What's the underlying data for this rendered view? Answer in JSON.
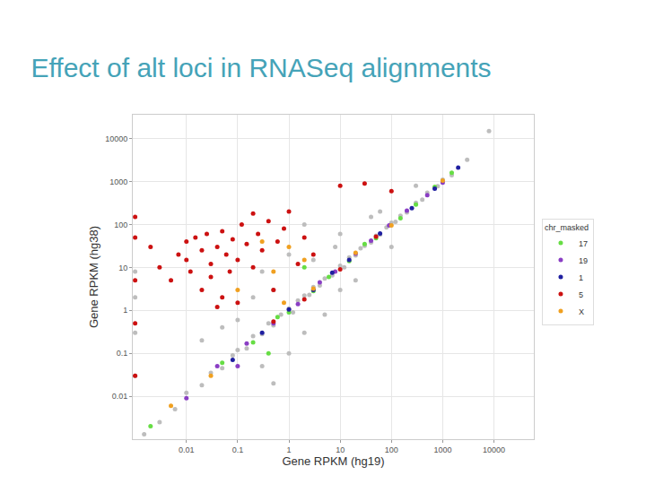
{
  "chart_data": {
    "type": "scatter",
    "title": "Effect of alt loci in RNASeq alignments",
    "x_label": "Gene RPKM (hg19)",
    "y_label": "Gene RPKM (hg38)",
    "legend_title": "chr_masked",
    "log": true,
    "grid": true,
    "legend": "right",
    "marker": "circle",
    "xlim": [
      0.0009,
      60000
    ],
    "ylim": [
      0.001,
      36000
    ],
    "xticks": [
      0.01,
      0.1,
      1,
      10,
      100,
      1000,
      10000
    ],
    "yticks": [
      0.01,
      0.1,
      1,
      10,
      100,
      1000,
      10000
    ],
    "series": [
      {
        "color": "#bdbdbd",
        "x": [
          0.0015,
          0.003,
          0.006,
          0.01,
          0.02,
          0.03,
          0.05,
          0.08,
          0.1,
          0.15,
          0.2,
          0.3,
          0.4,
          0.5,
          0.7,
          1,
          1.2,
          1.5,
          2,
          2.5,
          3,
          4,
          5,
          7,
          10,
          12,
          15,
          20,
          25,
          30,
          40,
          50,
          60,
          80,
          100,
          120,
          150,
          200,
          300,
          400,
          500,
          800,
          1000,
          1500,
          3000,
          8000,
          0.1,
          0.3,
          0.5,
          1,
          2,
          3,
          5,
          8,
          0.05,
          20,
          40,
          10,
          0.2,
          0.02,
          100,
          0.5,
          60,
          0.001,
          0.001,
          0.001,
          0.001,
          2,
          0.3,
          1,
          10,
          300
        ],
        "y": [
          0.0013,
          0.0025,
          0.005,
          0.012,
          0.018,
          0.035,
          0.045,
          0.09,
          0.12,
          0.13,
          0.25,
          0.28,
          0.5,
          0.45,
          0.8,
          1.1,
          0.9,
          1.7,
          2.2,
          2.3,
          3.5,
          3.8,
          5.5,
          6.5,
          11,
          10,
          17,
          19,
          28,
          32,
          38,
          55,
          58,
          85,
          110,
          115,
          160,
          190,
          320,
          380,
          550,
          780,
          1100,
          1400,
          3200,
          15000,
          0.6,
          0.05,
          3,
          0.1,
          0.3,
          15,
          0.8,
          30,
          0.4,
          5,
          150,
          60,
          2,
          0.2,
          30,
          0.02,
          200,
          0.03,
          0.3,
          2,
          8,
          100,
          8,
          20,
          3,
          800
        ]
      },
      {
        "name": "17",
        "color": "#66dd44",
        "x": [
          0.002,
          0.05,
          0.2,
          0.6,
          1,
          3,
          6,
          15,
          30,
          50,
          150,
          300,
          700,
          1500,
          0.4,
          2
        ],
        "y": [
          0.002,
          0.06,
          0.18,
          0.7,
          0.9,
          2.8,
          6,
          14,
          35,
          48,
          140,
          290,
          750,
          1600,
          0.1,
          10
        ]
      },
      {
        "name": "19",
        "color": "#8a3ec4",
        "x": [
          0.01,
          0.04,
          0.15,
          0.5,
          1.5,
          4,
          8,
          20,
          40,
          90,
          200,
          500,
          1000,
          0.1
        ],
        "y": [
          0.009,
          0.05,
          0.17,
          0.5,
          1.4,
          4.5,
          8,
          21,
          42,
          95,
          210,
          480,
          950,
          0.05
        ]
      },
      {
        "name": "1",
        "color": "#1f1fa0",
        "x": [
          0.3,
          1,
          3,
          7,
          15,
          60,
          250,
          700,
          2000,
          0.08
        ],
        "y": [
          0.3,
          1.05,
          3,
          7.5,
          15,
          62,
          240,
          680,
          2100,
          0.07
        ]
      },
      {
        "name": "5",
        "color": "#cc1111",
        "x": [
          0.002,
          0.003,
          0.005,
          0.007,
          0.01,
          0.01,
          0.012,
          0.015,
          0.02,
          0.02,
          0.025,
          0.03,
          0.03,
          0.04,
          0.05,
          0.05,
          0.06,
          0.07,
          0.08,
          0.1,
          0.1,
          0.12,
          0.15,
          0.2,
          0.25,
          0.3,
          0.4,
          0.5,
          0.6,
          0.8,
          1,
          1.5,
          2,
          3,
          10,
          30,
          100,
          0.2,
          0.04,
          0.001,
          0.001,
          0.001,
          0.001,
          0.001,
          0.5,
          2,
          10,
          50
        ],
        "y": [
          30,
          10,
          5,
          20,
          40,
          15,
          8,
          50,
          3,
          25,
          60,
          12,
          6,
          30,
          2,
          70,
          20,
          8,
          45,
          15,
          1.5,
          100,
          35,
          10,
          60,
          25,
          120,
          3,
          40,
          80,
          200,
          12,
          50,
          20,
          800,
          900,
          600,
          180,
          1.2,
          0.03,
          0.5,
          5,
          50,
          150,
          0.55,
          1.8,
          9,
          52
        ]
      },
      {
        "name": "X",
        "color": "#f0a020",
        "x": [
          0.1,
          0.3,
          0.5,
          1,
          2,
          0.005,
          0.03,
          3,
          20,
          100,
          0.8,
          1000
        ],
        "y": [
          3,
          40,
          8,
          30,
          15,
          0.006,
          0.03,
          3.2,
          22,
          95,
          1.5,
          1050
        ]
      }
    ]
  }
}
